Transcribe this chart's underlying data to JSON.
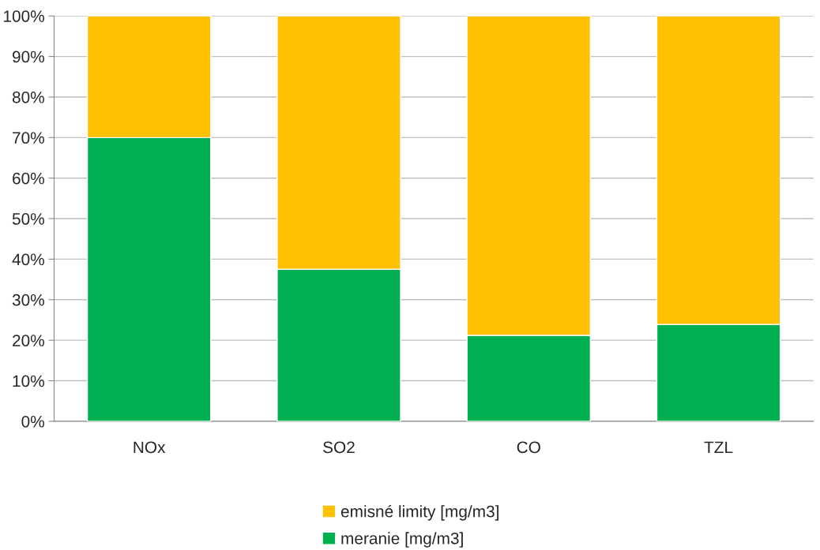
{
  "chart_data": {
    "type": "bar",
    "stacked": true,
    "categories": [
      "NOx",
      "SO2",
      "CO",
      "TZL"
    ],
    "series": [
      {
        "name": "meranie [mg/m3]",
        "color": "#00b050",
        "values": [
          70,
          37.5,
          21.2,
          23.9
        ]
      },
      {
        "name": "emisné limity [mg/m3]",
        "color": "#ffc000",
        "values": [
          30,
          62.5,
          78.8,
          76.1
        ]
      }
    ],
    "ylim": [
      0,
      100
    ],
    "yticks": [
      {
        "value": 0,
        "label": "0%"
      },
      {
        "value": 10,
        "label": "10%"
      },
      {
        "value": 20,
        "label": "20%"
      },
      {
        "value": 30,
        "label": "30%"
      },
      {
        "value": 40,
        "label": "40%"
      },
      {
        "value": 50,
        "label": "50%"
      },
      {
        "value": 60,
        "label": "60%"
      },
      {
        "value": 70,
        "label": "70%"
      },
      {
        "value": 80,
        "label": "80%"
      },
      {
        "value": 90,
        "label": "90%"
      },
      {
        "value": 100,
        "label": "100%"
      }
    ],
    "grid": "y",
    "legend": "bottom"
  }
}
